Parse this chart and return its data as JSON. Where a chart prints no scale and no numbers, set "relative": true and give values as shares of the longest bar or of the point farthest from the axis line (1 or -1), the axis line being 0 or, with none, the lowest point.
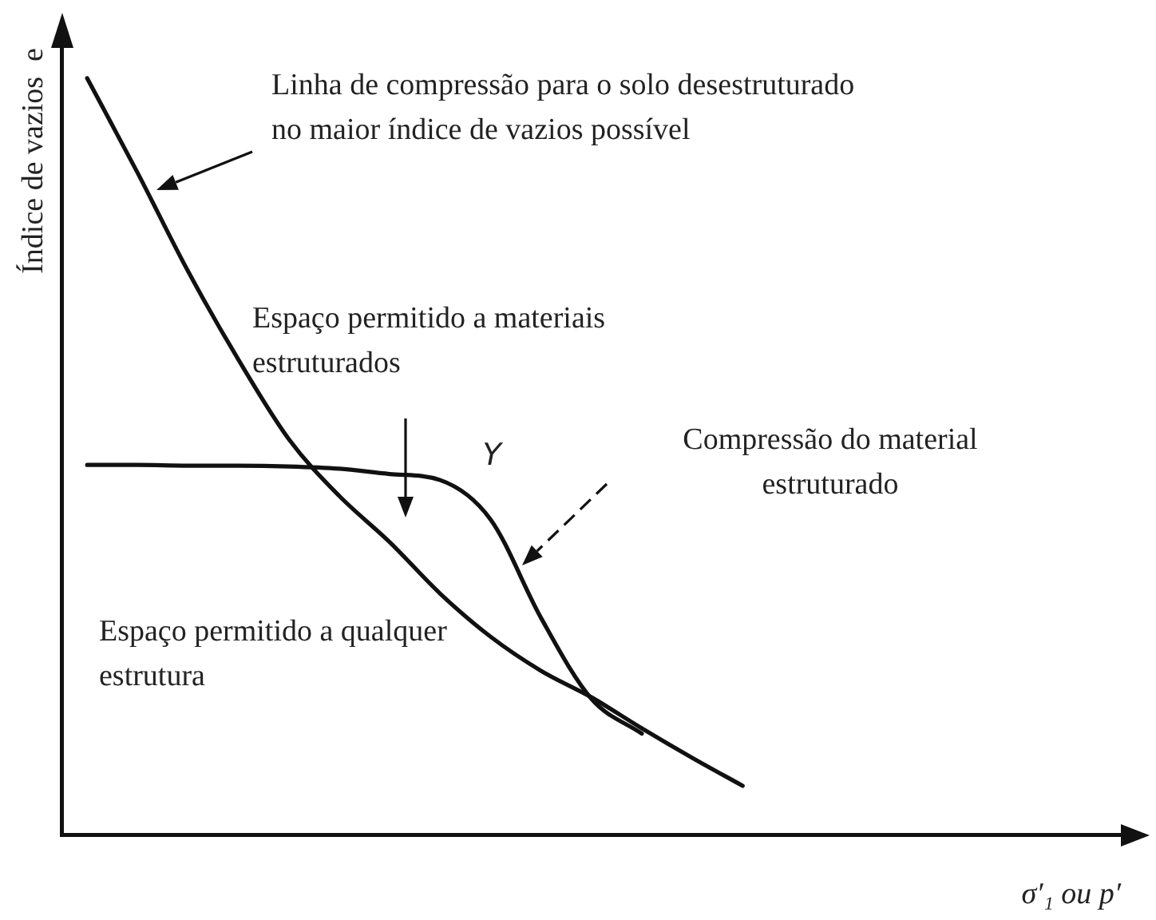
{
  "chart_data": {
    "type": "line",
    "relative": true,
    "marker": "none",
    "line_style": "solid",
    "xlabel": "σ′₁ ou p′",
    "ylabel": "Índice de vazios  e",
    "categories": [
      null,
      null,
      null,
      null,
      null,
      null,
      null,
      null,
      null,
      null,
      null,
      null,
      null,
      null,
      null,
      null,
      null,
      null,
      null,
      null,
      null
    ],
    "series": [
      {
        "color": "#111111",
        "values": [
          1,
          0.875,
          0.745,
          0.628,
          0.523,
          0.448,
          0.387,
          0.319,
          0.262,
          0.217,
          0.182,
          0.141,
          0.102,
          0.065,
          null,
          null,
          null,
          null,
          null,
          null,
          null
        ]
      },
      {
        "color": "#111111",
        "values": [
          0.489,
          0.489,
          0.488,
          0.488,
          0.487,
          0.484,
          0.477,
          0.469,
          0.417,
          0.287,
          0.18,
          0.134,
          null,
          null,
          null,
          null,
          null,
          null,
          null,
          null,
          null
        ]
      }
    ],
    "annotations": [
      "Linha de compressão para o solo desestruturado no maior índice de vazios possível",
      "Espaço permitido a materiais estruturados",
      "Compressão do material estruturado",
      "Espaço permitido a qualquer estrutura",
      "Y"
    ]
  }
}
